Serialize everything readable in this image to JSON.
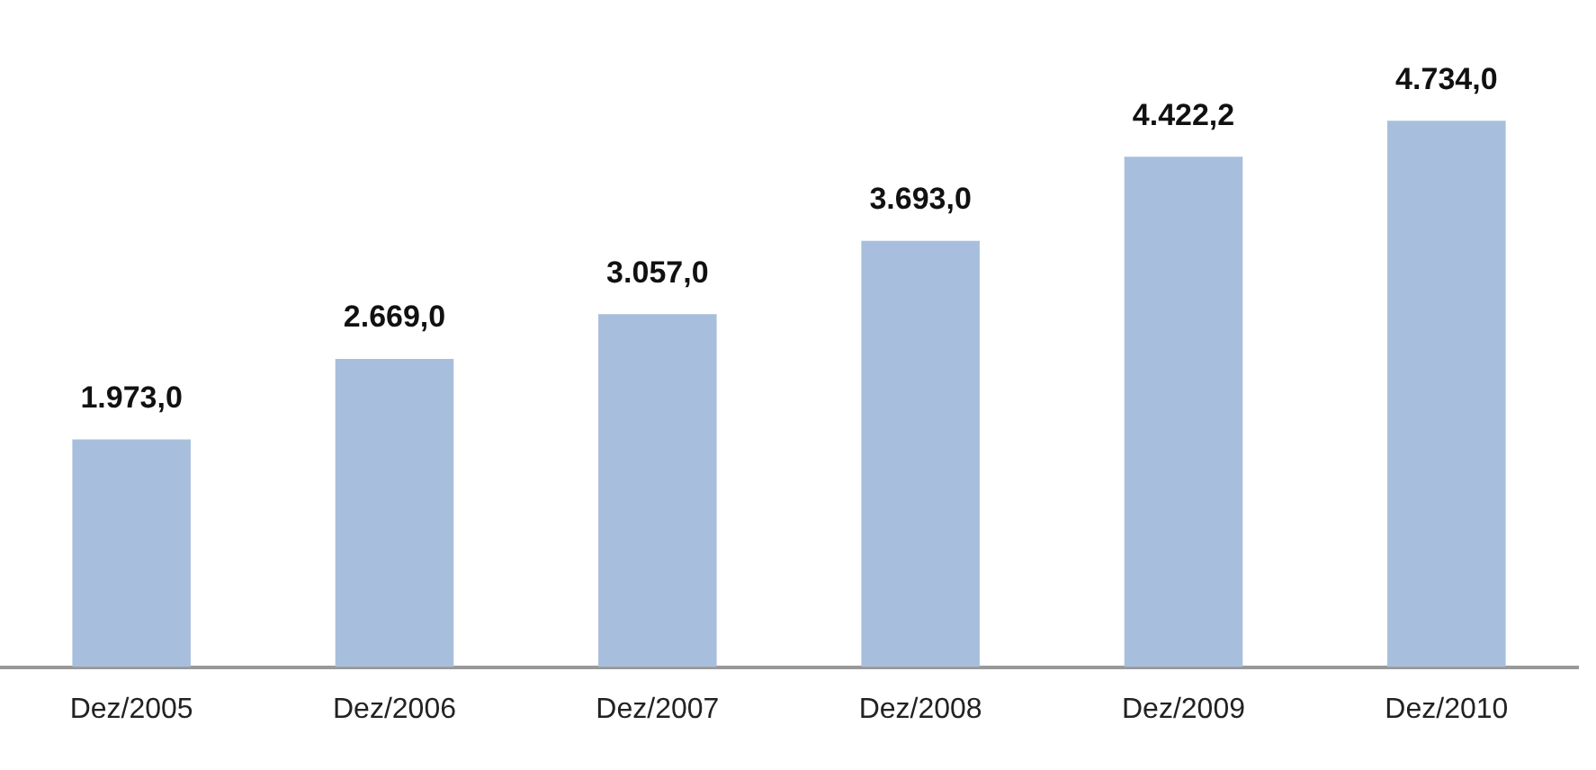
{
  "chart_data": {
    "type": "bar",
    "categories": [
      "Dez/2005",
      "Dez/2006",
      "Dez/2007",
      "Dez/2008",
      "Dez/2009",
      "Dez/2010"
    ],
    "values": [
      1973.0,
      2669.0,
      3057.0,
      3693.0,
      4422.2,
      4734.0
    ],
    "value_labels": [
      "1.973,0",
      "2.669,0",
      "3.057,0",
      "3.693,0",
      "4.422,2",
      "4.734,0"
    ],
    "color": "#a7bfdc",
    "grid": false,
    "legend": false
  }
}
